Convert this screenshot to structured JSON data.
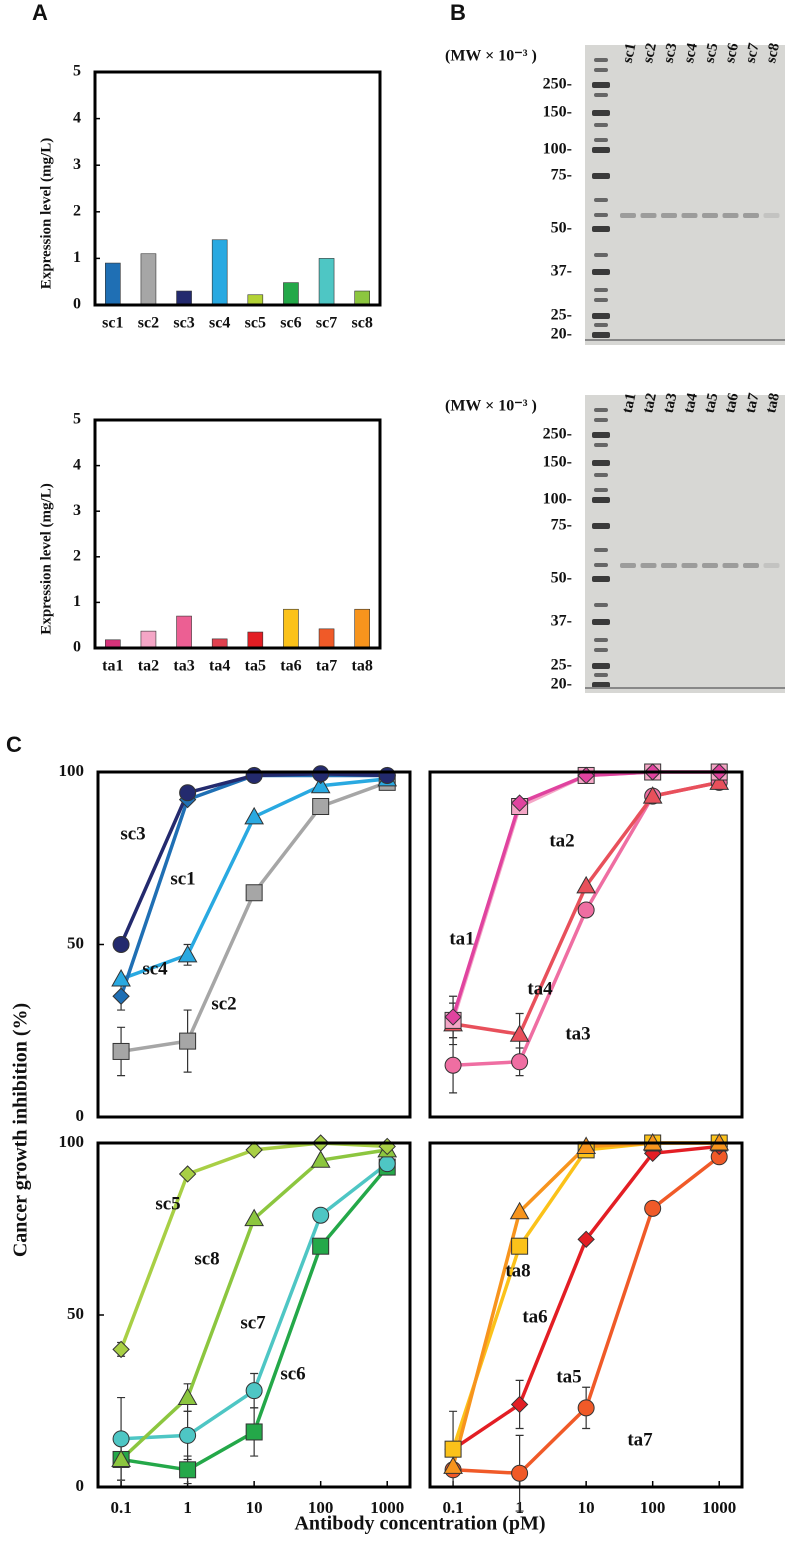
{
  "figure": {
    "panel_labels": [
      "A",
      "B",
      "C"
    ],
    "c_ylabel": "Cancer growth inhibition (%)",
    "c_xlabel": "Antibody concentration (pM)"
  },
  "chart_data": [
    {
      "type": "bar",
      "ylabel": "Expression level (mg/L)",
      "categories": [
        "sc1",
        "sc2",
        "sc3",
        "sc4",
        "sc5",
        "sc6",
        "sc7",
        "sc8"
      ],
      "values": [
        0.9,
        1.1,
        0.3,
        1.4,
        0.22,
        0.48,
        1.0,
        0.3
      ],
      "colors": [
        "#1f6fb4",
        "#a6a6a6",
        "#232a6e",
        "#29a9e1",
        "#b3d236",
        "#24a849",
        "#4ec6c4",
        "#8cc63f"
      ],
      "ylim": [
        0,
        5
      ],
      "yticks": [
        0,
        1,
        2,
        3,
        4,
        5
      ]
    },
    {
      "type": "bar",
      "ylabel": "Expression level (mg/L)",
      "categories": [
        "ta1",
        "ta2",
        "ta3",
        "ta4",
        "ta5",
        "ta6",
        "ta7",
        "ta8"
      ],
      "values": [
        0.18,
        0.37,
        0.7,
        0.2,
        0.35,
        0.85,
        0.42,
        0.85
      ],
      "colors": [
        "#d6337a",
        "#f4a6c6",
        "#ec5f93",
        "#e0414f",
        "#e31e24",
        "#fbc21a",
        "#f05a28",
        "#f7941d"
      ],
      "ylim": [
        0,
        5
      ],
      "yticks": [
        0,
        1,
        2,
        3,
        4,
        5
      ]
    },
    {
      "type": "gel",
      "mw_title": "(MW × 10⁻³ )",
      "markers": [
        "250-",
        "150-",
        "100-",
        "75-",
        "50-",
        "37-",
        "25-",
        "20-"
      ],
      "lanes": [
        "sc1",
        "sc2",
        "sc3",
        "sc4",
        "sc5",
        "sc6",
        "sc7",
        "sc8"
      ]
    },
    {
      "type": "gel",
      "mw_title": "(MW × 10⁻³ )",
      "markers": [
        "250-",
        "150-",
        "100-",
        "75-",
        "50-",
        "37-",
        "25-",
        "20-"
      ],
      "lanes": [
        "ta1",
        "ta2",
        "ta3",
        "ta4",
        "ta5",
        "ta6",
        "ta7",
        "ta8"
      ]
    },
    {
      "type": "line",
      "xscale": "log",
      "x": [
        0.1,
        1,
        10,
        100,
        1000
      ],
      "xlim": [
        0.045,
        2200
      ],
      "ylim": [
        0,
        100
      ],
      "yticks": [
        0,
        50,
        100
      ],
      "series": [
        {
          "name": "sc3",
          "color": "#232a6e",
          "marker": "circle",
          "values": [
            50,
            94,
            99,
            99.5,
            99
          ],
          "errors": [
            null,
            null,
            null,
            null,
            null
          ]
        },
        {
          "name": "sc1",
          "color": "#1f6fb4",
          "marker": "diamond",
          "values": [
            35,
            92,
            99,
            99,
            99
          ],
          "errors": [
            4,
            null,
            null,
            null,
            null
          ]
        },
        {
          "name": "sc4",
          "color": "#29a9e1",
          "marker": "triangle",
          "values": [
            40,
            47,
            87,
            96,
            98
          ],
          "errors": [
            null,
            3,
            null,
            null,
            null
          ]
        },
        {
          "name": "sc2",
          "color": "#a6a6a6",
          "marker": "square",
          "values": [
            19,
            22,
            65,
            90,
            97
          ],
          "errors": [
            7,
            9,
            null,
            null,
            null
          ]
        }
      ]
    },
    {
      "type": "line",
      "xscale": "log",
      "x": [
        0.1,
        1,
        10,
        100,
        1000
      ],
      "xlim": [
        0.045,
        2200
      ],
      "ylim": [
        0,
        100
      ],
      "series": [
        {
          "name": "ta1",
          "color": "#e0439f",
          "marker": "diamond",
          "values": [
            29,
            91,
            99,
            100,
            100
          ],
          "errors": [
            6,
            null,
            null,
            null,
            null
          ]
        },
        {
          "name": "ta2",
          "color": "#f4a6c6",
          "marker": "square",
          "values": [
            28,
            90,
            99,
            100,
            100
          ],
          "errors": [
            null,
            null,
            null,
            null,
            null
          ]
        },
        {
          "name": "ta4",
          "color": "#e8505b",
          "marker": "triangle",
          "values": [
            27,
            24,
            67,
            93,
            97
          ],
          "errors": [
            6,
            6,
            null,
            null,
            null
          ]
        },
        {
          "name": "ta3",
          "color": "#ef6ea2",
          "marker": "circle",
          "values": [
            15,
            16,
            60,
            93,
            97
          ],
          "errors": [
            8,
            4,
            null,
            null,
            null
          ]
        }
      ]
    },
    {
      "type": "line",
      "xscale": "log",
      "x": [
        0.1,
        1,
        10,
        100,
        1000
      ],
      "xlim": [
        0.045,
        2200
      ],
      "ylim": [
        0,
        100
      ],
      "xticks": [
        0.1,
        1,
        10,
        100,
        1000
      ],
      "yticks": [
        0,
        50,
        100
      ],
      "series": [
        {
          "name": "sc5",
          "color": "#a8cf45",
          "marker": "diamond",
          "values": [
            40,
            91,
            98,
            100,
            99
          ],
          "errors": [
            2,
            null,
            null,
            null,
            null
          ]
        },
        {
          "name": "sc8",
          "color": "#8cc63f",
          "marker": "triangle",
          "values": [
            8,
            26,
            78,
            95,
            98
          ],
          "errors": [
            null,
            4,
            null,
            null,
            null
          ]
        },
        {
          "name": "sc7",
          "color": "#4ec6c4",
          "marker": "circle",
          "values": [
            14,
            15,
            28,
            79,
            94
          ],
          "errors": [
            12,
            7,
            5,
            null,
            null
          ]
        },
        {
          "name": "sc6",
          "color": "#24a849",
          "marker": "square",
          "values": [
            8,
            5,
            16,
            70,
            93
          ],
          "errors": [
            6,
            4,
            7,
            null,
            null
          ]
        }
      ]
    },
    {
      "type": "line",
      "xscale": "log",
      "x": [
        0.1,
        1,
        10,
        100,
        1000
      ],
      "xlim": [
        0.045,
        2200
      ],
      "ylim": [
        0,
        100
      ],
      "xticks": [
        0.1,
        1,
        10,
        100,
        1000
      ],
      "series": [
        {
          "name": "ta8",
          "color": "#f7941d",
          "marker": "triangle",
          "values": [
            6,
            80,
            99,
            100,
            100
          ],
          "errors": [
            null,
            null,
            null,
            null,
            null
          ]
        },
        {
          "name": "ta6",
          "color": "#fbc21a",
          "marker": "square",
          "values": [
            11,
            70,
            98,
            100,
            100
          ],
          "errors": [
            11,
            null,
            null,
            null,
            null
          ]
        },
        {
          "name": "ta5",
          "color": "#e31e24",
          "marker": "diamond",
          "values": [
            11,
            24,
            72,
            97,
            99
          ],
          "errors": [
            null,
            7,
            null,
            null,
            null
          ]
        },
        {
          "name": "ta7",
          "color": "#f05a28",
          "marker": "circle",
          "values": [
            5,
            4,
            23,
            81,
            96
          ],
          "errors": [
            null,
            11,
            6,
            null,
            null
          ]
        }
      ]
    }
  ]
}
